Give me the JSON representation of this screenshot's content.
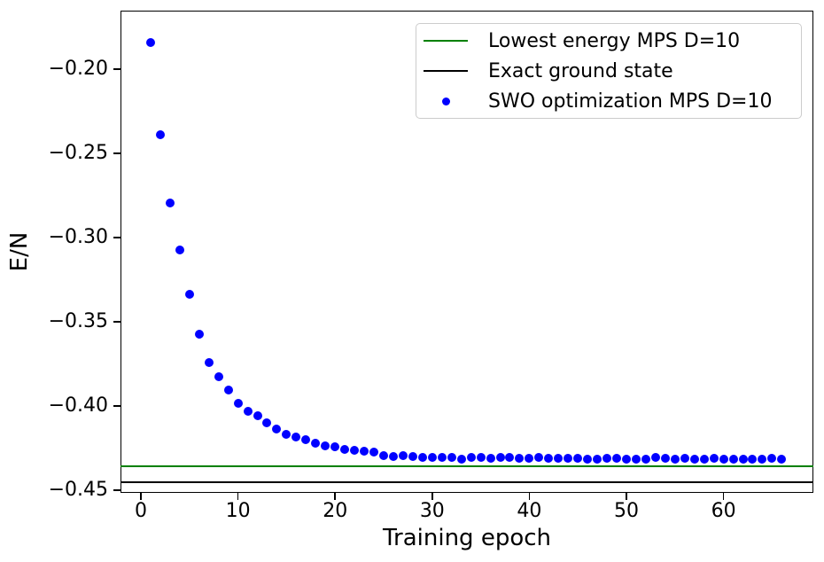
{
  "figure": {
    "background": "#ffffff",
    "xlabel": "Training epoch",
    "ylabel": "E/N"
  },
  "legend": {
    "position": "upper right",
    "items": [
      {
        "label": "Lowest energy MPS D=10",
        "sample": "line",
        "color": "#008000"
      },
      {
        "label": "Exact ground state",
        "sample": "line",
        "color": "#000000"
      },
      {
        "label": "SWO optimization MPS D=10",
        "sample": "marker",
        "color": "#0000ff"
      }
    ]
  },
  "chart_data": {
    "type": "scatter",
    "title": "",
    "xlabel": "Training epoch",
    "ylabel": "E/N",
    "xlim": [
      -2.1,
      69.25
    ],
    "ylim": [
      -0.4516,
      -0.1653
    ],
    "xticks": [
      0,
      10,
      20,
      30,
      40,
      50,
      60
    ],
    "yticks": [
      -0.2,
      -0.25,
      -0.3,
      -0.35,
      -0.4,
      -0.45
    ],
    "grid": false,
    "legend_position": "upper right",
    "series": [
      {
        "name": "SWO optimization MPS D=10",
        "type": "scatter",
        "color": "#0000ff",
        "marker_size": 10,
        "x": [
          1,
          2,
          3,
          4,
          5,
          6,
          7,
          8,
          9,
          10,
          11,
          12,
          13,
          14,
          15,
          16,
          17,
          18,
          19,
          20,
          21,
          22,
          23,
          24,
          25,
          26,
          27,
          28,
          29,
          30,
          31,
          32,
          33,
          34,
          35,
          36,
          37,
          38,
          39,
          40,
          41,
          42,
          43,
          44,
          45,
          46,
          47,
          48,
          49,
          50,
          51,
          52,
          53,
          54,
          55,
          56,
          57,
          58,
          59,
          60,
          61,
          62,
          63,
          64,
          65,
          66
        ],
        "y": [
          -0.184,
          -0.239,
          -0.2795,
          -0.3074,
          -0.3337,
          -0.3574,
          -0.3742,
          -0.3826,
          -0.3905,
          -0.3984,
          -0.4032,
          -0.4058,
          -0.41,
          -0.4137,
          -0.4168,
          -0.4184,
          -0.42,
          -0.4221,
          -0.4237,
          -0.4242,
          -0.4258,
          -0.4263,
          -0.4268,
          -0.4274,
          -0.4295,
          -0.43,
          -0.4295,
          -0.43,
          -0.4305,
          -0.4305,
          -0.4305,
          -0.4305,
          -0.4316,
          -0.4304,
          -0.4305,
          -0.431,
          -0.4308,
          -0.4305,
          -0.431,
          -0.4312,
          -0.4308,
          -0.431,
          -0.4312,
          -0.431,
          -0.4312,
          -0.4314,
          -0.4316,
          -0.431,
          -0.4312,
          -0.4314,
          -0.4316,
          -0.4316,
          -0.4305,
          -0.4312,
          -0.4314,
          -0.4312,
          -0.4314,
          -0.4316,
          -0.4312,
          -0.4316,
          -0.4314,
          -0.4316,
          -0.4316,
          -0.4314,
          -0.4309,
          -0.4316
        ]
      },
      {
        "name": "Lowest energy MPS D=10",
        "type": "hline",
        "color": "#008000",
        "y": -0.4358
      },
      {
        "name": "Exact ground state",
        "type": "hline",
        "color": "#000000",
        "y": -0.4453
      }
    ]
  }
}
